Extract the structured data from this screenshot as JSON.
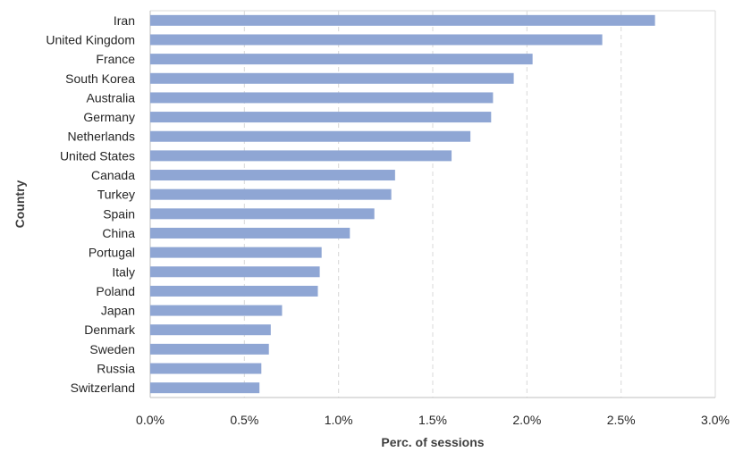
{
  "chart_data": {
    "type": "bar",
    "orientation": "horizontal",
    "categories": [
      "Iran",
      "United Kingdom",
      "France",
      "South Korea",
      "Australia",
      "Germany",
      "Netherlands",
      "United States",
      "Canada",
      "Turkey",
      "Spain",
      "China",
      "Portugal",
      "Italy",
      "Poland",
      "Japan",
      "Denmark",
      "Sweden",
      "Russia",
      "Switzerland"
    ],
    "values": [
      2.68,
      2.4,
      2.03,
      1.93,
      1.82,
      1.81,
      1.7,
      1.6,
      1.3,
      1.28,
      1.19,
      1.06,
      0.91,
      0.9,
      0.89,
      0.7,
      0.64,
      0.63,
      0.59,
      0.58
    ],
    "xlabel": "Perc. of sessions",
    "ylabel": "Country",
    "xlim": [
      0,
      3
    ],
    "xticks": [
      0,
      0.5,
      1.0,
      1.5,
      2.0,
      2.5,
      3.0
    ],
    "xtick_labels": [
      "0.0%",
      "0.5%",
      "1.0%",
      "1.5%",
      "2.0%",
      "2.5%",
      "3.0%"
    ],
    "grid": "vertical dashed",
    "bar_color": "#8fa6d4",
    "legend": "none"
  }
}
